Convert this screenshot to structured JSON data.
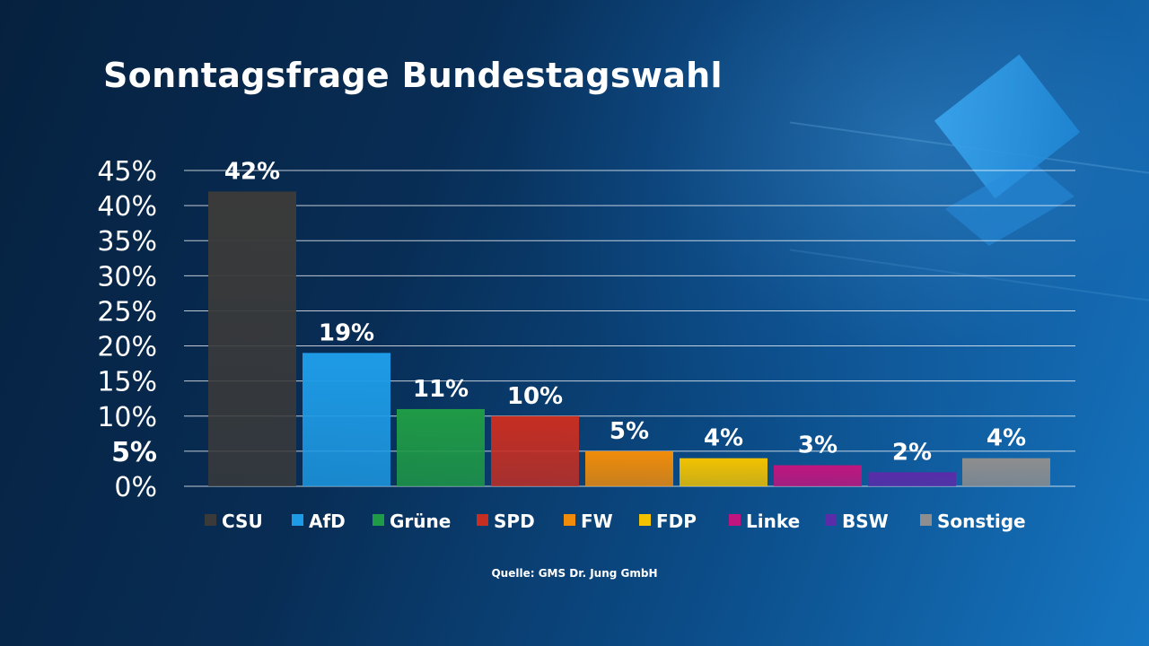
{
  "title": "Sonntagsfrage Bundestagswahl",
  "source": "Quelle: GMS Dr. Jung GmbH",
  "chart_data": {
    "type": "bar",
    "title": "Sonntagsfrage Bundestagswahl",
    "categories": [
      "CSU",
      "AfD",
      "Grüne",
      "SPD",
      "FW",
      "FDP",
      "Linke",
      "BSW",
      "Sonstige"
    ],
    "values": [
      42,
      19,
      11,
      10,
      5,
      4,
      3,
      2,
      4
    ],
    "value_labels": [
      "42%",
      "19%",
      "11%",
      "10%",
      "5%",
      "4%",
      "3%",
      "2%",
      "4%"
    ],
    "colors": [
      "#3a3a3a",
      "#1e9be6",
      "#1f9a46",
      "#c62e22",
      "#f08c0a",
      "#f2c200",
      "#c0157e",
      "#5a2ca8",
      "#8e8e8e"
    ],
    "ylim": [
      0,
      45
    ],
    "yticks": [
      "0%",
      "5%",
      "10%",
      "15%",
      "20%",
      "25%",
      "30%",
      "35%",
      "40%",
      "45%"
    ],
    "highlight_tick": "5%",
    "grid": true,
    "legend_position": "bottom",
    "xlabel": "",
    "ylabel": ""
  }
}
